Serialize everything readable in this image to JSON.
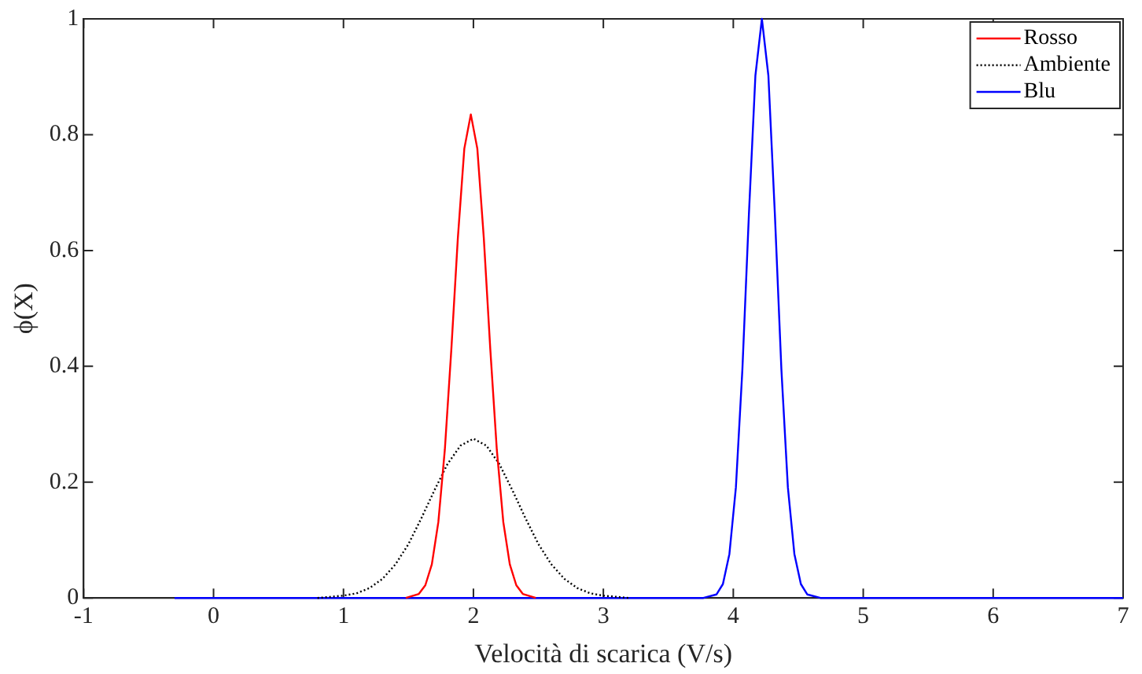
{
  "chart_data": {
    "type": "line",
    "xlabel": "Velocità di scarica (V/s)",
    "ylabel": "ϕ(X)",
    "xlim": [
      -1,
      7
    ],
    "xticks": [
      -1,
      0,
      1,
      2,
      3,
      4,
      5,
      6,
      7
    ],
    "ylim": [
      0,
      1
    ],
    "yticks": [
      0,
      0.2,
      0.4,
      0.6,
      0.8,
      1
    ],
    "grid": false,
    "legend": "top right",
    "marker": "none",
    "series": [
      {
        "name": "Rosso",
        "color": "#ff0000",
        "line_style": "solid",
        "x": [
          1.48,
          1.58,
          1.63,
          1.68,
          1.73,
          1.78,
          1.83,
          1.88,
          1.93,
          1.98,
          2.03,
          2.08,
          2.13,
          2.18,
          2.23,
          2.28,
          2.33,
          2.38,
          2.48
        ],
        "values": [
          0,
          0.007,
          0.022,
          0.058,
          0.131,
          0.256,
          0.429,
          0.621,
          0.776,
          0.835,
          0.776,
          0.621,
          0.429,
          0.256,
          0.131,
          0.058,
          0.022,
          0.007,
          0
        ]
      },
      {
        "name": "Ambiente",
        "color": "#000000",
        "line_style": "dotted",
        "x": [
          0.8,
          1.0,
          1.1,
          1.2,
          1.3,
          1.4,
          1.5,
          1.6,
          1.7,
          1.8,
          1.9,
          2.0,
          2.1,
          2.2,
          2.3,
          2.4,
          2.5,
          2.6,
          2.7,
          2.8,
          2.9,
          3.0,
          3.2
        ],
        "values": [
          0,
          0.004,
          0.008,
          0.017,
          0.033,
          0.058,
          0.093,
          0.138,
          0.186,
          0.231,
          0.263,
          0.275,
          0.263,
          0.231,
          0.186,
          0.138,
          0.093,
          0.058,
          0.033,
          0.017,
          0.008,
          0.004,
          0
        ]
      },
      {
        "name": "Blu",
        "color": "#0000ff",
        "line_style": "solid",
        "x": [
          -0.3,
          3.77,
          3.87,
          3.92,
          3.97,
          4.02,
          4.07,
          4.12,
          4.17,
          4.22,
          4.27,
          4.32,
          4.37,
          4.42,
          4.47,
          4.52,
          4.57,
          4.67,
          7
        ],
        "values": [
          0,
          0,
          0.006,
          0.024,
          0.076,
          0.191,
          0.395,
          0.662,
          0.902,
          1.0,
          0.902,
          0.662,
          0.395,
          0.191,
          0.076,
          0.024,
          0.006,
          0,
          0
        ]
      }
    ]
  }
}
